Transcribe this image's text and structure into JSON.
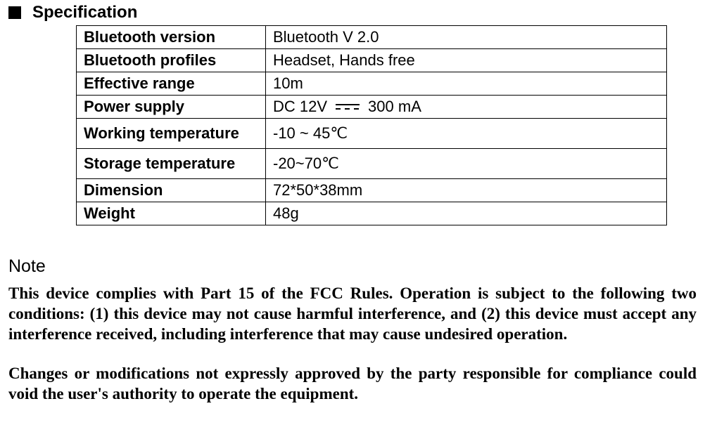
{
  "heading": "Specification",
  "table": {
    "rows": [
      {
        "key": "Bluetooth version",
        "value": "Bluetooth V 2.0",
        "tall": false,
        "dc": false
      },
      {
        "key": "Bluetooth profiles",
        "value": "Headset, Hands free",
        "tall": false,
        "dc": false
      },
      {
        "key": "Effective range",
        "value": "10m",
        "tall": false,
        "dc": false
      },
      {
        "key": "Power supply",
        "value_pre": "DC 12V",
        "value_post": "300 mA",
        "tall": false,
        "dc": true
      },
      {
        "key": "Working temperature",
        "value": "-10 ~ 45℃",
        "tall": true,
        "dc": false
      },
      {
        "key": "Storage temperature",
        "value": "-20~70℃",
        "tall": true,
        "dc": false
      },
      {
        "key": "Dimension",
        "value": "72*50*38mm",
        "tall": false,
        "dc": false
      },
      {
        "key": "Weight",
        "value": "48g",
        "tall": false,
        "dc": false
      }
    ]
  },
  "note": {
    "heading": "Note",
    "p1": "This device complies with Part 15 of the FCC Rules. Operation is subject to the following two conditions: (1) this device may not cause harmful interference, and (2) this device must accept any interference received, including interference that may cause undesired operation.",
    "p2": "Changes or modifications not expressly approved by the party responsible for compliance could void the user's authority to operate the equipment."
  }
}
